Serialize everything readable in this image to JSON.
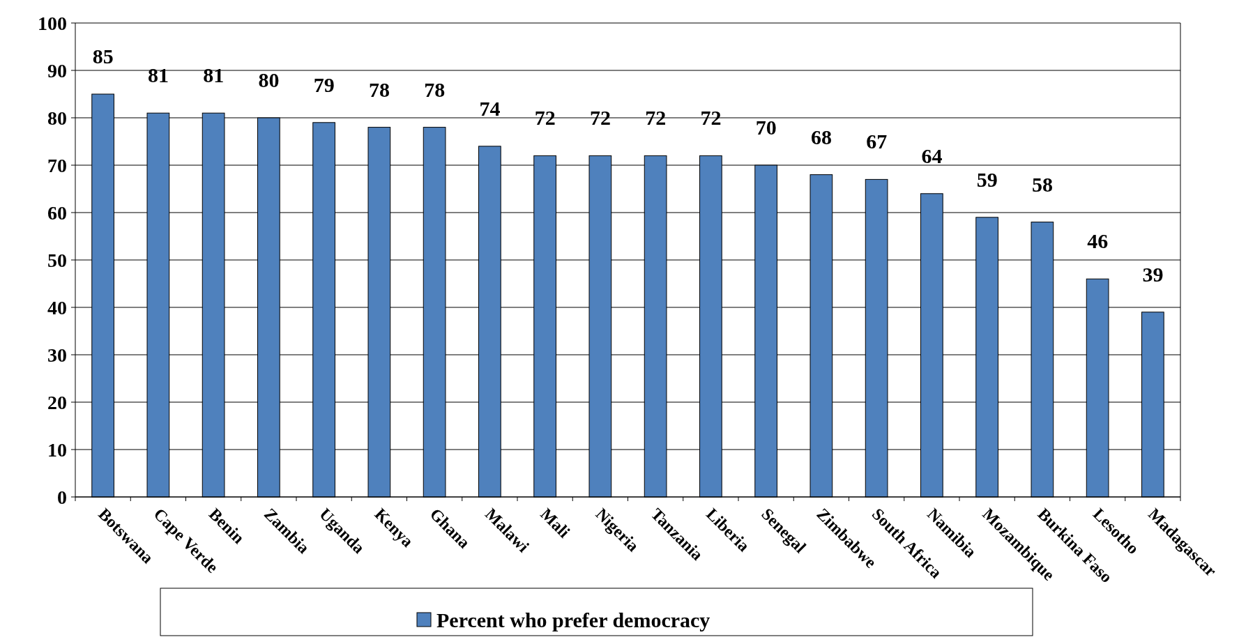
{
  "chart_data": {
    "type": "bar",
    "categories": [
      "Botswana",
      "Cape Verde",
      "Benin",
      "Zambia",
      "Uganda",
      "Kenya",
      "Ghana",
      "Malawi",
      "Mali",
      "Nigeria",
      "Tanzania",
      "Liberia",
      "Senegal",
      "Zimbabwe",
      "South Africa",
      "Namibia",
      "Mozambique",
      "Burkina Faso",
      "Lesotho",
      "Madagascar"
    ],
    "series": [
      {
        "name": "Percent who prefer democracy",
        "color": "#4f81bd",
        "values": [
          85,
          81,
          81,
          80,
          79,
          78,
          78,
          74,
          72,
          72,
          72,
          72,
          70,
          68,
          67,
          64,
          59,
          58,
          46,
          39
        ]
      }
    ],
    "ylim": [
      0,
      100
    ],
    "yticks": [
      0,
      10,
      20,
      30,
      40,
      50,
      60,
      70,
      80,
      90,
      100
    ],
    "grid": "y",
    "legend": "bottom",
    "data_labels": true
  }
}
